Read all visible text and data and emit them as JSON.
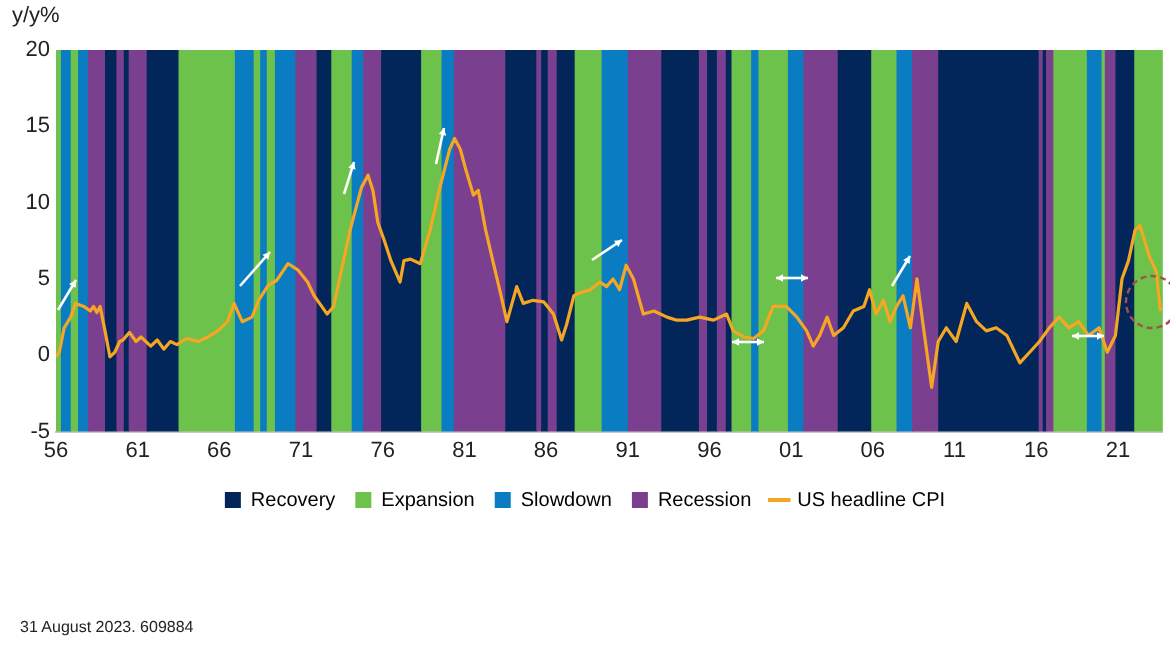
{
  "chart_data": {
    "type": "line",
    "ylabel": "y/y%",
    "xlim": [
      1956,
      2023.7
    ],
    "xticks": [
      {
        "value": 1956,
        "label": "56"
      },
      {
        "value": 1961,
        "label": "61"
      },
      {
        "value": 1966,
        "label": "66"
      },
      {
        "value": 1971,
        "label": "71"
      },
      {
        "value": 1976,
        "label": "76"
      },
      {
        "value": 1981,
        "label": "81"
      },
      {
        "value": 1986,
        "label": "86"
      },
      {
        "value": 1991,
        "label": "91"
      },
      {
        "value": 1996,
        "label": "96"
      },
      {
        "value": 2001,
        "label": "01"
      },
      {
        "value": 2006,
        "label": "06"
      },
      {
        "value": 2011,
        "label": "11"
      },
      {
        "value": 2016,
        "label": "16"
      },
      {
        "value": 2021,
        "label": "21"
      }
    ],
    "ylim": [
      -5,
      20
    ],
    "yticks": [
      -5,
      0,
      5,
      10,
      15,
      20
    ],
    "grid": false,
    "legend": "bottom",
    "marker": "none",
    "line_style": "solid",
    "series": [
      {
        "name": "US headline CPI",
        "color": "#f5a623",
        "x": [
          1956.0,
          1956.2,
          1956.5,
          1956.9,
          1957.2,
          1957.7,
          1958.1,
          1958.3,
          1958.5,
          1958.7,
          1959.0,
          1959.3,
          1959.6,
          1959.9,
          1960.1,
          1960.5,
          1960.9,
          1961.2,
          1961.8,
          1962.2,
          1962.6,
          1963.0,
          1963.4,
          1964.0,
          1964.7,
          1965.3,
          1965.9,
          1966.5,
          1966.9,
          1967.4,
          1968.0,
          1968.4,
          1969.0,
          1969.5,
          1970.2,
          1970.8,
          1971.4,
          1971.8,
          1972.2,
          1972.6,
          1973.0,
          1973.4,
          1974.0,
          1974.7,
          1975.1,
          1975.4,
          1975.7,
          1976.1,
          1976.5,
          1977.06,
          1977.3,
          1977.7,
          1978.3,
          1978.9,
          1979.5,
          1980.1,
          1980.4,
          1980.75,
          1981.1,
          1981.55,
          1981.85,
          1982.3,
          1982.8,
          1983.2,
          1983.6,
          1984.2,
          1984.6,
          1985.2,
          1985.85,
          1986.45,
          1986.95,
          1987.25,
          1987.7,
          1988.1,
          1988.7,
          1989.3,
          1989.7,
          1990.1,
          1990.5,
          1990.9,
          1991.35,
          1991.95,
          1992.6,
          1993.4,
          1994.0,
          1994.6,
          1995.4,
          1996.25,
          1997.05,
          1997.45,
          1998.1,
          1998.7,
          1999.3,
          1999.9,
          2000.7,
          2001.35,
          2001.95,
          2002.35,
          2002.75,
          2003.2,
          2003.6,
          2004.2,
          2004.8,
          2005.45,
          2005.8,
          2006.2,
          2006.65,
          2007.05,
          2007.45,
          2007.85,
          2008.3,
          2008.7,
          2009.1,
          2009.6,
          2010.0,
          2010.5,
          2011.1,
          2011.75,
          2012.35,
          2012.95,
          2013.55,
          2014.2,
          2015.0,
          2015.6,
          2016.2,
          2016.8,
          2017.4,
          2018.0,
          2018.6,
          2019.2,
          2019.85,
          2020.35,
          2020.85,
          2021.25,
          2021.65,
          2022.05,
          2022.35,
          2022.95,
          2023.35,
          2023.6
        ],
        "values": [
          -0.1,
          0.2,
          1.8,
          2.5,
          3.4,
          3.2,
          2.9,
          3.2,
          2.8,
          3.2,
          1.6,
          -0.1,
          0.2,
          0.9,
          1.0,
          1.5,
          0.9,
          1.2,
          0.6,
          1.0,
          0.4,
          0.9,
          0.7,
          1.1,
          0.9,
          1.2,
          1.6,
          2.2,
          3.4,
          2.2,
          2.5,
          3.6,
          4.6,
          4.9,
          6.0,
          5.6,
          4.8,
          3.9,
          3.3,
          2.7,
          3.2,
          5.2,
          8.2,
          11.0,
          11.8,
          10.8,
          8.7,
          7.5,
          6.2,
          4.8,
          6.2,
          6.3,
          6.0,
          8.2,
          11.0,
          13.5,
          14.2,
          13.5,
          12.1,
          10.5,
          10.8,
          8.2,
          5.9,
          4.1,
          2.2,
          4.5,
          3.4,
          3.6,
          3.5,
          2.7,
          1.0,
          2.0,
          3.9,
          4.1,
          4.3,
          4.8,
          4.5,
          5.0,
          4.3,
          5.9,
          5.0,
          2.7,
          2.9,
          2.5,
          2.3,
          2.3,
          2.5,
          2.3,
          2.7,
          1.6,
          1.2,
          1.1,
          1.6,
          3.2,
          3.2,
          2.5,
          1.6,
          0.6,
          1.3,
          2.5,
          1.3,
          1.8,
          2.9,
          3.2,
          4.3,
          2.7,
          3.6,
          2.2,
          3.2,
          3.9,
          1.8,
          5.0,
          1.8,
          -2.1,
          0.9,
          1.8,
          0.9,
          3.4,
          2.2,
          1.6,
          1.8,
          1.3,
          -0.5,
          0.2,
          0.9,
          1.8,
          2.5,
          1.8,
          2.2,
          1.3,
          1.8,
          0.2,
          1.3,
          5.0,
          6.2,
          8.2,
          8.5,
          6.4,
          5.5,
          2.9
        ]
      }
    ],
    "bands": [
      {
        "axis": "x",
        "from": 1956.0,
        "to": 1956.3,
        "color": "#6cc24a"
      },
      {
        "axis": "x",
        "from": 1956.3,
        "to": 1956.9,
        "color": "#0a7dc2"
      },
      {
        "axis": "x",
        "from": 1956.9,
        "to": 1957.35,
        "color": "#6cc24a"
      },
      {
        "axis": "x",
        "from": 1957.35,
        "to": 1957.95,
        "color": "#0a7dc2"
      },
      {
        "axis": "x",
        "from": 1957.95,
        "to": 1959.0,
        "color": "#7b3f8f"
      },
      {
        "axis": "x",
        "from": 1959.0,
        "to": 1959.7,
        "label": "Recovery",
        "color": "#03265a"
      },
      {
        "axis": "x",
        "from": 1959.7,
        "to": 1960.15,
        "color": "#7b3f8f"
      },
      {
        "axis": "x",
        "from": 1960.15,
        "to": 1960.45,
        "color": "#03265a"
      },
      {
        "axis": "x",
        "from": 1960.45,
        "to": 1961.55,
        "color": "#7b3f8f"
      },
      {
        "axis": "x",
        "from": 1961.55,
        "to": 1963.5,
        "color": "#03265a"
      },
      {
        "axis": "x",
        "from": 1963.5,
        "to": 1966.95,
        "label": "Expansion",
        "color": "#6cc24a"
      },
      {
        "axis": "x",
        "from": 1966.95,
        "to": 1968.1,
        "label": "Slowdown",
        "color": "#0a7dc2"
      },
      {
        "axis": "x",
        "from": 1968.1,
        "to": 1968.5,
        "color": "#6cc24a"
      },
      {
        "axis": "x",
        "from": 1968.5,
        "to": 1968.9,
        "color": "#0a7dc2"
      },
      {
        "axis": "x",
        "from": 1968.9,
        "to": 1969.4,
        "color": "#6cc24a"
      },
      {
        "axis": "x",
        "from": 1969.4,
        "to": 1970.65,
        "color": "#0a7dc2"
      },
      {
        "axis": "x",
        "from": 1970.65,
        "to": 1971.95,
        "label": "Recession",
        "color": "#7b3f8f"
      },
      {
        "axis": "x",
        "from": 1971.95,
        "to": 1972.85,
        "color": "#03265a"
      },
      {
        "axis": "x",
        "from": 1972.85,
        "to": 1974.1,
        "color": "#6cc24a"
      },
      {
        "axis": "x",
        "from": 1974.1,
        "to": 1974.8,
        "color": "#0a7dc2"
      },
      {
        "axis": "x",
        "from": 1974.8,
        "to": 1975.9,
        "color": "#7b3f8f"
      },
      {
        "axis": "x",
        "from": 1975.9,
        "to": 1978.35,
        "color": "#03265a"
      },
      {
        "axis": "x",
        "from": 1978.35,
        "to": 1979.6,
        "color": "#6cc24a"
      },
      {
        "axis": "x",
        "from": 1979.6,
        "to": 1980.35,
        "color": "#0a7dc2"
      },
      {
        "axis": "x",
        "from": 1980.35,
        "to": 1983.5,
        "color": "#7b3f8f"
      },
      {
        "axis": "x",
        "from": 1983.5,
        "to": 1985.4,
        "color": "#03265a"
      },
      {
        "axis": "x",
        "from": 1985.4,
        "to": 1985.7,
        "color": "#7b3f8f"
      },
      {
        "axis": "x",
        "from": 1985.7,
        "to": 1986.1,
        "color": "#03265a"
      },
      {
        "axis": "x",
        "from": 1986.1,
        "to": 1986.65,
        "color": "#7b3f8f"
      },
      {
        "axis": "x",
        "from": 1986.65,
        "to": 1987.75,
        "color": "#03265a"
      },
      {
        "axis": "x",
        "from": 1987.75,
        "to": 1989.4,
        "color": "#6cc24a"
      },
      {
        "axis": "x",
        "from": 1989.4,
        "to": 1991.0,
        "color": "#0a7dc2"
      },
      {
        "axis": "x",
        "from": 1991.0,
        "to": 1993.05,
        "color": "#7b3f8f"
      },
      {
        "axis": "x",
        "from": 1993.05,
        "to": 1995.35,
        "color": "#03265a"
      },
      {
        "axis": "x",
        "from": 1995.35,
        "to": 1995.85,
        "color": "#7b3f8f"
      },
      {
        "axis": "x",
        "from": 1995.85,
        "to": 1996.45,
        "color": "#03265a"
      },
      {
        "axis": "x",
        "from": 1996.45,
        "to": 1997.0,
        "color": "#7b3f8f"
      },
      {
        "axis": "x",
        "from": 1997.0,
        "to": 1997.35,
        "color": "#03265a"
      },
      {
        "axis": "x",
        "from": 1997.35,
        "to": 1998.55,
        "color": "#6cc24a"
      },
      {
        "axis": "x",
        "from": 1998.55,
        "to": 1999.0,
        "color": "#0a7dc2"
      },
      {
        "axis": "x",
        "from": 1999.0,
        "to": 2000.8,
        "color": "#6cc24a"
      },
      {
        "axis": "x",
        "from": 2000.8,
        "to": 2001.75,
        "color": "#0a7dc2"
      },
      {
        "axis": "x",
        "from": 2001.75,
        "to": 2003.85,
        "color": "#7b3f8f"
      },
      {
        "axis": "x",
        "from": 2003.85,
        "to": 2005.9,
        "color": "#03265a"
      },
      {
        "axis": "x",
        "from": 2005.9,
        "to": 2007.45,
        "color": "#6cc24a"
      },
      {
        "axis": "x",
        "from": 2007.45,
        "to": 2008.4,
        "color": "#0a7dc2"
      },
      {
        "axis": "x",
        "from": 2008.4,
        "to": 2010.0,
        "color": "#7b3f8f"
      },
      {
        "axis": "x",
        "from": 2010.0,
        "to": 2016.15,
        "color": "#03265a"
      },
      {
        "axis": "x",
        "from": 2016.15,
        "to": 2016.4,
        "color": "#7b3f8f"
      },
      {
        "axis": "x",
        "from": 2016.4,
        "to": 2016.6,
        "color": "#03265a"
      },
      {
        "axis": "x",
        "from": 2016.6,
        "to": 2017.05,
        "color": "#7b3f8f"
      },
      {
        "axis": "x",
        "from": 2017.05,
        "to": 2019.1,
        "color": "#6cc24a"
      },
      {
        "axis": "x",
        "from": 2019.1,
        "to": 2020.0,
        "color": "#0a7dc2"
      },
      {
        "axis": "x",
        "from": 2020.0,
        "to": 2020.2,
        "color": "#6cc24a"
      },
      {
        "axis": "x",
        "from": 2020.2,
        "to": 2020.85,
        "color": "#7b3f8f"
      },
      {
        "axis": "x",
        "from": 2020.85,
        "to": 2022.0,
        "color": "#03265a"
      },
      {
        "axis": "x",
        "from": 2022.0,
        "to": 2023.7,
        "color": "#6cc24a"
      }
    ],
    "annotations": [
      "31 August 2023. 609884"
    ]
  }
}
